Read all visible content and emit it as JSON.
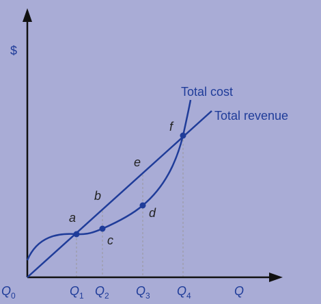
{
  "y_axis_label": "$",
  "x_axis_labels": [
    {
      "main": "Q",
      "sub": "0"
    },
    {
      "main": "Q",
      "sub": "1"
    },
    {
      "main": "Q",
      "sub": "2"
    },
    {
      "main": "Q",
      "sub": "3"
    },
    {
      "main": "Q",
      "sub": "4"
    },
    {
      "main": "Q"
    }
  ],
  "curves": [
    {
      "label": "Total cost"
    },
    {
      "label": "Total revenue"
    }
  ],
  "points": [
    "a",
    "b",
    "c",
    "d",
    "e",
    "f"
  ]
}
